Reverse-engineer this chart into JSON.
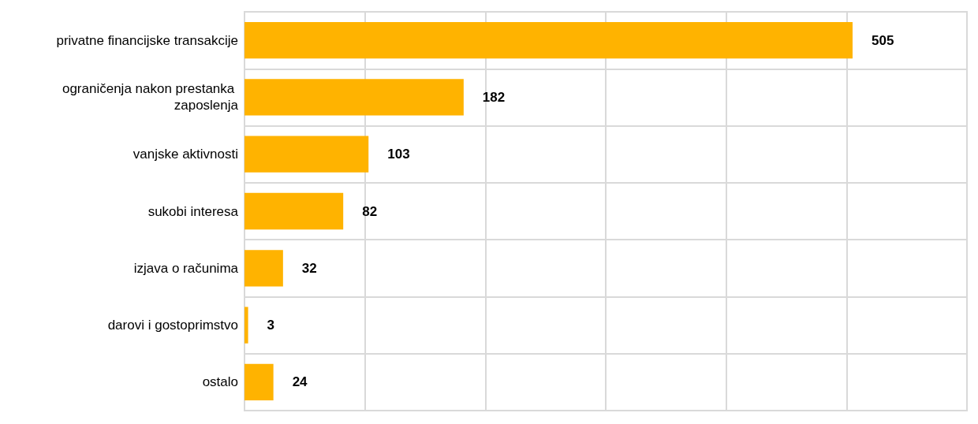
{
  "chart_data": {
    "type": "bar",
    "orientation": "horizontal",
    "categories": [
      "privatne financijske transakcije",
      "ograničenja nakon prestanka zaposlenja",
      "vanjske aktivnosti",
      "sukobi interesa",
      "izjava o računima",
      "darovi i gostoprimstvo",
      "ostalo"
    ],
    "values": [
      505,
      182,
      103,
      82,
      32,
      3,
      24
    ],
    "color": "#ffb300",
    "xlim": [
      0,
      600
    ],
    "xticks": [
      {
        "value": 0,
        "label": null
      },
      {
        "value": 100,
        "label": null
      },
      {
        "value": 200,
        "label": null
      },
      {
        "value": 300,
        "label": null
      },
      {
        "value": 400,
        "label": null
      },
      {
        "value": 500,
        "label": null
      },
      {
        "value": 600,
        "label": null
      }
    ],
    "grid": true,
    "data_labels": true
  }
}
